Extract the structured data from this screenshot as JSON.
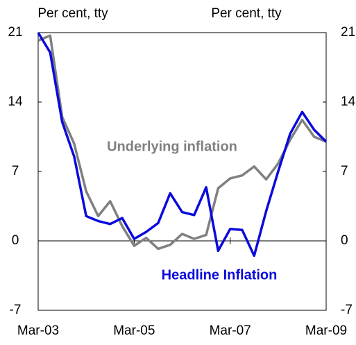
{
  "chart_data": {
    "type": "line",
    "y_label": "Per cent, tty",
    "y2_label": "Per cent, tty",
    "categories": [
      "Mar-03",
      null,
      null,
      null,
      null,
      null,
      null,
      null,
      "Mar-05",
      null,
      null,
      null,
      null,
      null,
      null,
      null,
      "Mar-07",
      null,
      null,
      null,
      null,
      null,
      null,
      null,
      "Mar-09"
    ],
    "series": [
      {
        "name": "Underlying inflation",
        "color": "#808080",
        "values": [
          20.2,
          20.7,
          12.5,
          9.8,
          5,
          2.5,
          4,
          1.5,
          -0.5,
          0.3,
          -0.8,
          -0.4,
          0.7,
          0.2,
          0.6,
          5.3,
          6.3,
          6.6,
          7.5,
          6.2,
          7.8,
          10.2,
          12.2,
          10.5,
          10
        ]
      },
      {
        "name": "Headline Inflation",
        "color": "#0a0adc",
        "values": [
          21,
          19,
          12,
          8.5,
          2.5,
          2,
          1.7,
          2.3,
          0.2,
          0.9,
          1.8,
          4.8,
          2.9,
          2.6,
          5.4,
          -1,
          1.2,
          1.1,
          -1.5,
          3,
          7,
          10.8,
          13,
          11.2,
          10
        ]
      }
    ],
    "ylim": [
      -7,
      21
    ],
    "yticks": [
      -7,
      0,
      7,
      14,
      21
    ],
    "y2lim": [
      -7,
      21
    ],
    "y2ticks": [
      -7,
      0,
      7,
      14,
      21
    ]
  }
}
